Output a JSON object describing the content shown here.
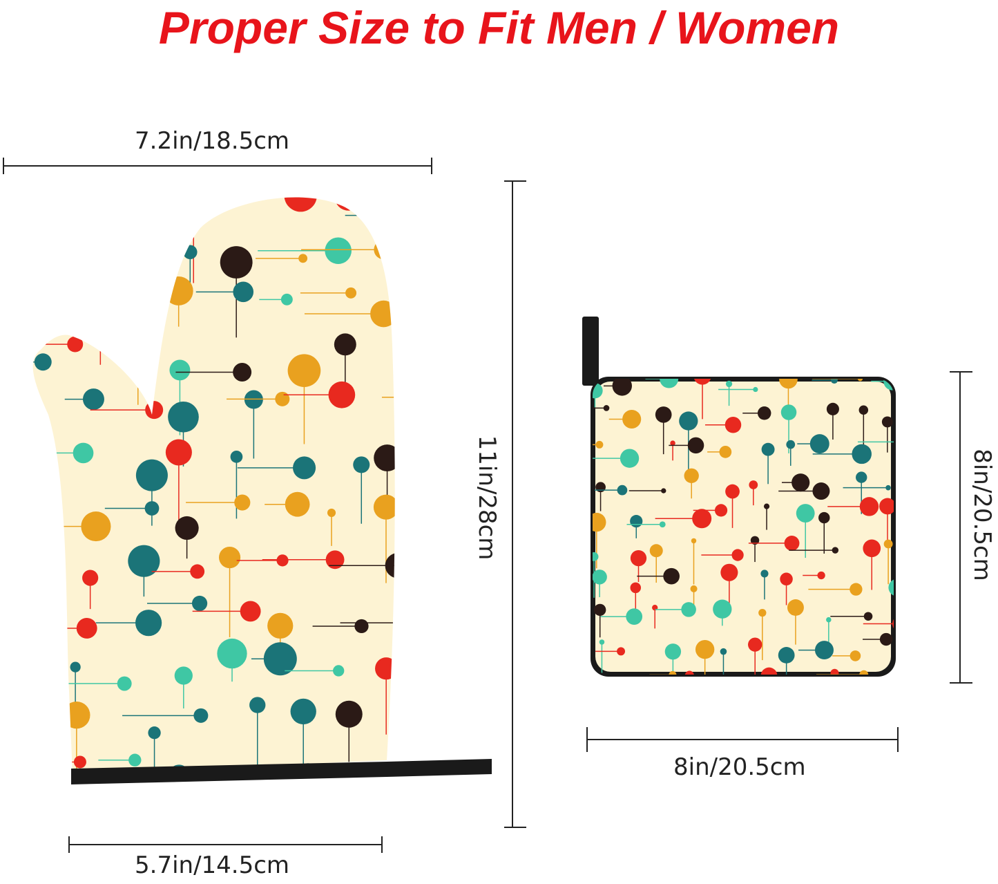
{
  "title": "Proper Size to Fit Men / Women",
  "mitt": {
    "width_label": "7.2in/18.5cm",
    "height_label": "11in/28cm",
    "cuff_label": "5.7in/14.5cm"
  },
  "pot_holder": {
    "height_label": "8in/20.5cm",
    "width_label": "8in/20.5cm"
  },
  "colors": {
    "title": "#e8141b",
    "fabric": "#fdf3d3",
    "trim": "#1a1a1a",
    "dots": [
      "#e8291f",
      "#1b7478",
      "#e9a11f",
      "#3fc7a4",
      "#2b1a16"
    ]
  }
}
